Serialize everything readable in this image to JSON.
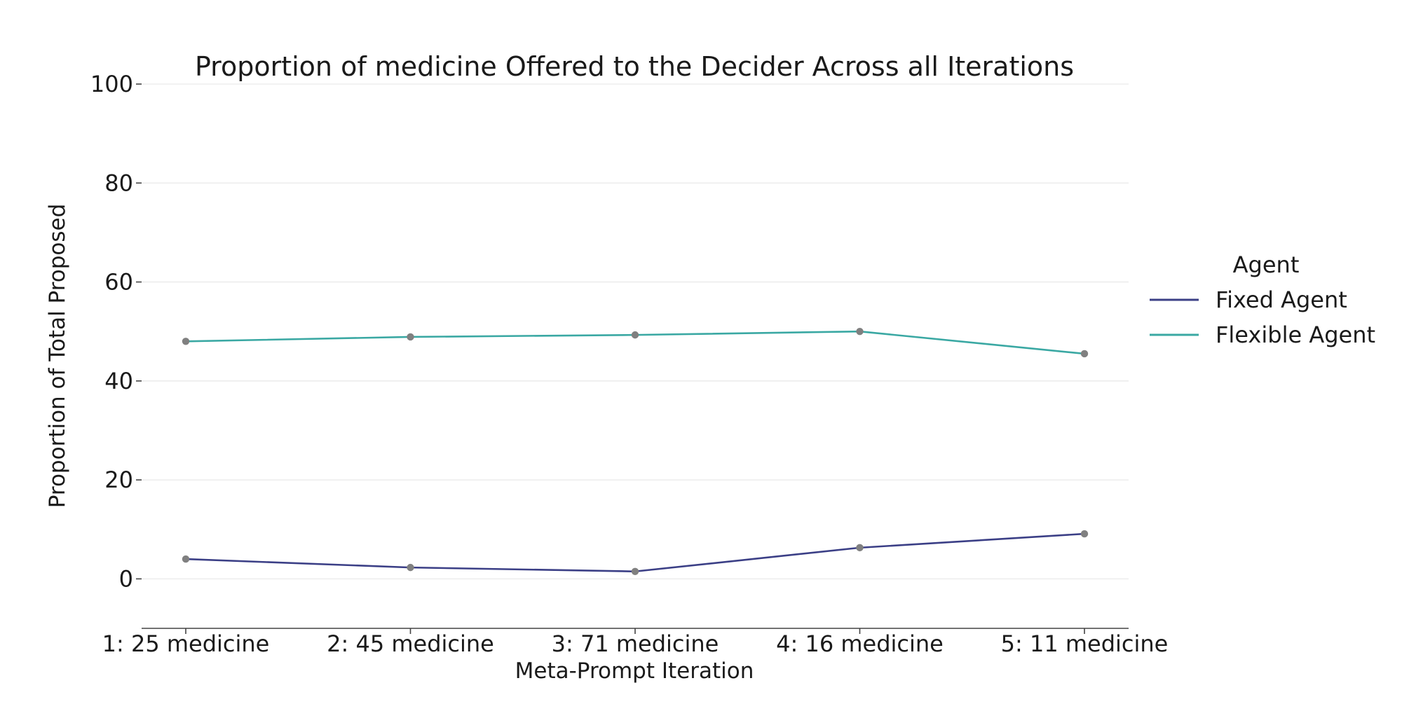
{
  "chart_data": {
    "type": "line",
    "title": "Proportion of medicine Offered to the Decider Across all Iterations",
    "xlabel": "Meta-Prompt Iteration",
    "ylabel": "Proportion of Total Proposed",
    "categories": [
      "1: 25 medicine",
      "2: 45 medicine",
      "3: 71 medicine",
      "4: 16 medicine",
      "5: 11 medicine"
    ],
    "ylim": [
      -10,
      100
    ],
    "yticks": [
      0,
      20,
      40,
      60,
      80,
      100
    ],
    "grid": true,
    "legend": {
      "title": "Agent",
      "placement": "right"
    },
    "series": [
      {
        "name": "Fixed Agent",
        "color": "#3b3f86",
        "values": [
          4.0,
          2.3,
          1.5,
          6.3,
          9.1
        ]
      },
      {
        "name": "Flexible Agent",
        "color": "#3aa8a3",
        "values": [
          48.0,
          48.9,
          49.3,
          50.0,
          45.5
        ]
      }
    ],
    "marker_color": "#808080"
  }
}
